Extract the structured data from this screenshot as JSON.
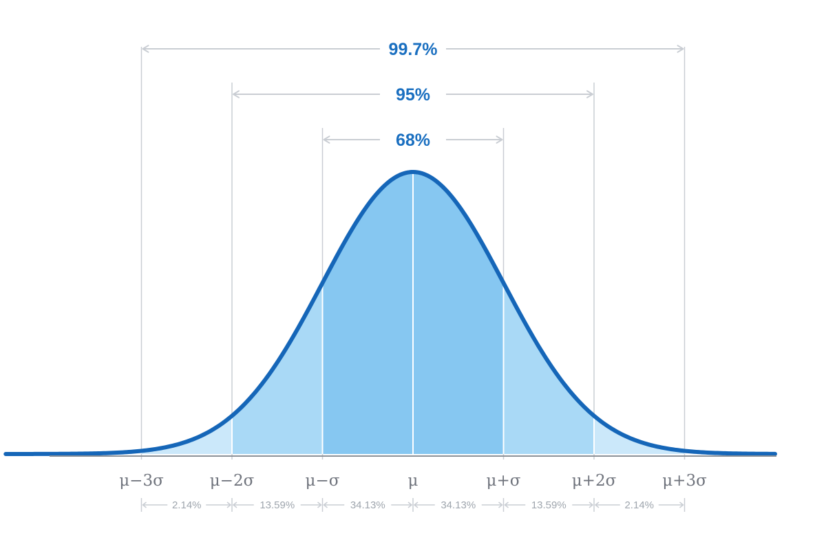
{
  "chart_data": {
    "type": "area",
    "distribution": "normal",
    "mean": 0,
    "sd": 1,
    "xlim": [
      -4.5,
      4
    ],
    "x_ticks": [
      {
        "value": -3,
        "label": "μ−3σ"
      },
      {
        "value": -2,
        "label": "μ−2σ"
      },
      {
        "value": -1,
        "label": "μ−σ"
      },
      {
        "value": 0,
        "label": "μ"
      },
      {
        "value": 1,
        "label": "μ+σ"
      },
      {
        "value": 2,
        "label": "μ+2σ"
      },
      {
        "value": 3,
        "label": "μ+3σ"
      }
    ],
    "segments": [
      {
        "from": -3,
        "to": -2,
        "label": "2.14%"
      },
      {
        "from": -2,
        "to": -1,
        "label": "13.59%"
      },
      {
        "from": -1,
        "to": 0,
        "label": "34.13%"
      },
      {
        "from": 0,
        "to": 1,
        "label": "34.13%"
      },
      {
        "from": 1,
        "to": 2,
        "label": "13.59%"
      },
      {
        "from": 2,
        "to": 3,
        "label": "2.14%"
      }
    ],
    "ranges": [
      {
        "from": -3,
        "to": 3,
        "label": "99.7%"
      },
      {
        "from": -2,
        "to": 2,
        "label": "95%"
      },
      {
        "from": -1,
        "to": 1,
        "label": "68%"
      }
    ]
  },
  "colors": {
    "curve": "#1566b8",
    "fill_inner": "#86c7f1",
    "fill_middle": "#a9d9f6",
    "fill_outer": "#cbe8fa",
    "guide": "#c9cdd3",
    "range_text": "#1a6fc0",
    "tick_text": "#6f737c",
    "segment_text": "#9ea5ad",
    "axis": "#8b9097"
  }
}
